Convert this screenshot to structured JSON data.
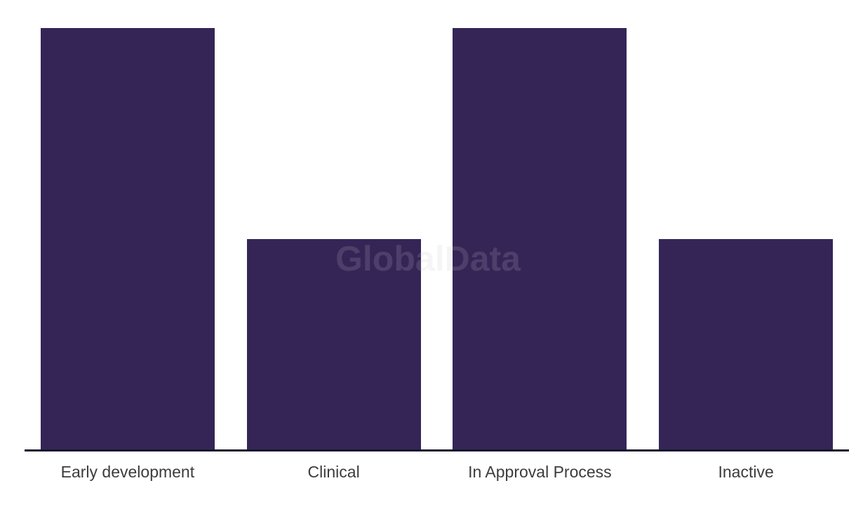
{
  "watermark": {
    "text": "GlobalData"
  },
  "chart_data": {
    "type": "bar",
    "title": "",
    "xlabel": "",
    "ylabel": "",
    "categories": [
      "Early development",
      "Clinical",
      "In Approval Process",
      "Inactive"
    ],
    "values": [
      2,
      1,
      2,
      1
    ],
    "ylim": [
      0,
      2.13
    ],
    "y_axis_visible": false,
    "y_tick_labels": [],
    "grid": false,
    "legend": "none",
    "bar_color": "#352557",
    "axis_line_color": "#17162e",
    "label_color": "#3c3c3c",
    "background_color": "#ffffff",
    "watermark_text": "GlobalData"
  }
}
